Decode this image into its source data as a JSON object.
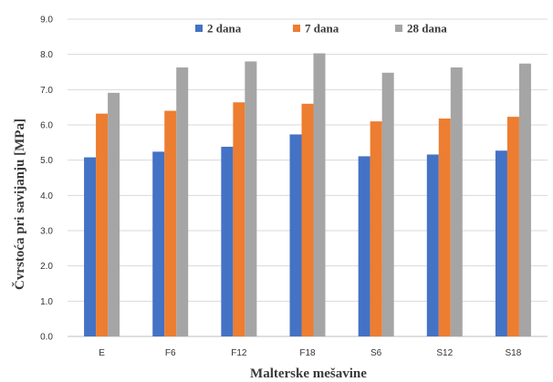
{
  "chart_data": {
    "type": "bar",
    "title": "",
    "xlabel": "Malterske mešavine",
    "ylabel": "Čvrstoća pri savijanju [MPa]",
    "ylim": [
      0,
      9
    ],
    "yticks": [
      "0.0",
      "1.0",
      "2.0",
      "3.0",
      "4.0",
      "5.0",
      "6.0",
      "7.0",
      "8.0",
      "9.0"
    ],
    "grid": true,
    "legend_position": "top",
    "categories": [
      "E",
      "F6",
      "F12",
      "F18",
      "S6",
      "S12",
      "S18"
    ],
    "series": [
      {
        "name": "2 dana",
        "color": "#4472c4",
        "values": [
          5.08,
          5.24,
          5.38,
          5.73,
          5.11,
          5.16,
          5.27
        ]
      },
      {
        "name": "7 dana",
        "color": "#ed7d31",
        "values": [
          6.32,
          6.4,
          6.64,
          6.6,
          6.1,
          6.18,
          6.23
        ]
      },
      {
        "name": "28 dana",
        "color": "#a5a5a5",
        "values": [
          6.91,
          7.63,
          7.8,
          8.03,
          7.48,
          7.63,
          7.74
        ]
      }
    ]
  }
}
